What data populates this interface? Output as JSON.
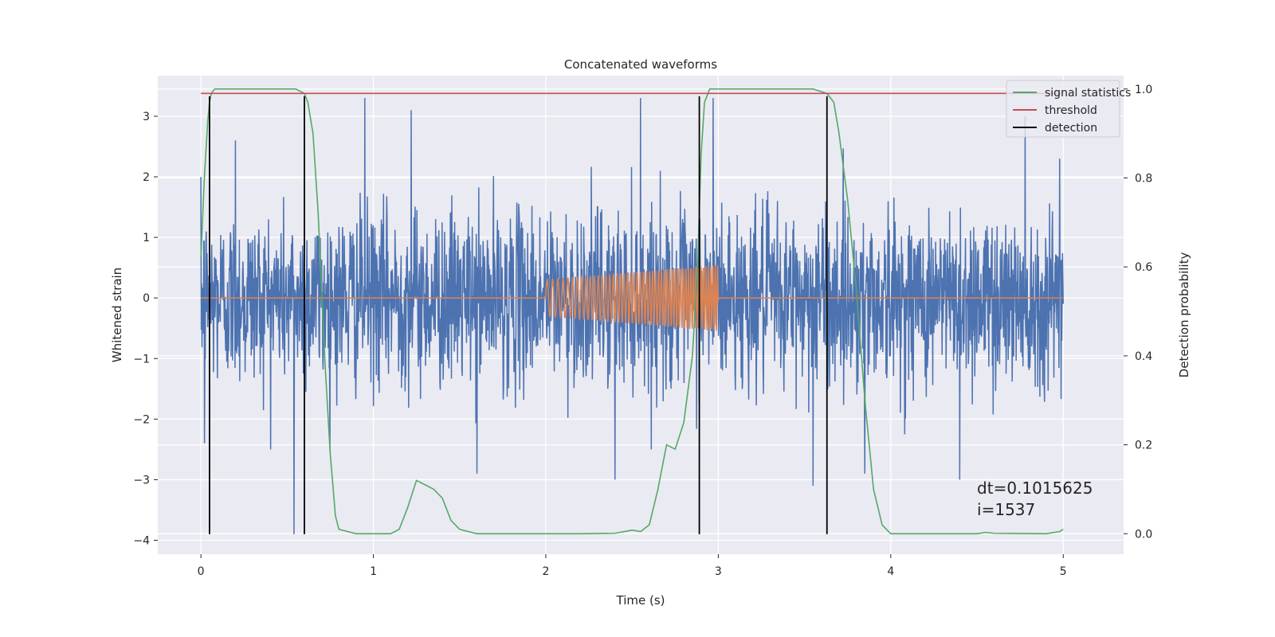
{
  "chart_data": {
    "type": "line",
    "title": "Concatenated waveforms",
    "xlabel": "Time (s)",
    "ylabel_left": "Whitened strain",
    "ylabel_right": "Detection probability",
    "xlim": [
      -0.25,
      5.35
    ],
    "ylim_left": [
      -4.23,
      3.67
    ],
    "ylim_right": [
      -0.046,
      1.03
    ],
    "x_ticks": [
      0,
      1,
      2,
      3,
      4,
      5
    ],
    "y_left_ticks": [
      -4,
      -3,
      -2,
      -1,
      0,
      1,
      2,
      3
    ],
    "y_right_ticks": [
      0.0,
      0.2,
      0.4,
      0.6,
      0.8,
      1.0
    ],
    "x_tick_labels": [
      "0",
      "1",
      "2",
      "3",
      "4",
      "5"
    ],
    "y_left_tick_labels": [
      "−4",
      "−3",
      "−2",
      "−1",
      "0",
      "1",
      "2",
      "3"
    ],
    "y_right_tick_labels": [
      "0.0",
      "0.2",
      "0.4",
      "0.6",
      "0.8",
      "1.0"
    ],
    "grid": true,
    "legend_placement": "top-right",
    "colors": {
      "strain": "#4c72b0",
      "template": "#dd8452",
      "signal_statistics": "#55a868",
      "threshold": "#c44e52",
      "detection": "#000000",
      "background": "#eaeaf2",
      "grid": "#ffffff"
    },
    "series": [
      {
        "name": "",
        "axis": "left",
        "kind": "noise",
        "x_range": [
          0,
          5
        ],
        "typical_abs_max": 2.0,
        "extremes": [
          {
            "x": 0.02,
            "y": -2.4
          },
          {
            "x": 0.2,
            "y": 2.6
          },
          {
            "x": 0.54,
            "y": -3.9
          },
          {
            "x": 0.95,
            "y": 3.3
          },
          {
            "x": 1.22,
            "y": 3.1
          },
          {
            "x": 1.6,
            "y": -2.9
          },
          {
            "x": 2.4,
            "y": -3.0
          },
          {
            "x": 2.55,
            "y": 3.3
          },
          {
            "x": 2.97,
            "y": 3.3
          },
          {
            "x": 3.55,
            "y": -3.1
          },
          {
            "x": 3.85,
            "y": -2.9
          },
          {
            "x": 4.4,
            "y": -3.0
          },
          {
            "x": 4.78,
            "y": -3.6
          },
          {
            "x": 4.78,
            "y": 3.0
          },
          {
            "x": 4.98,
            "y": 2.3
          }
        ]
      },
      {
        "name": "",
        "axis": "left",
        "kind": "chirp",
        "x_range": [
          0,
          5
        ],
        "chirp_start": 2.0,
        "chirp_end": 3.0,
        "amp_start": 0.3,
        "amp_end": 0.55,
        "freq_start": 30,
        "freq_end": 75
      },
      {
        "name": "signal statistics",
        "axis": "right",
        "x": [
          0,
          0.02,
          0.04,
          0.05,
          0.06,
          0.08,
          0.1,
          0.15,
          0.4,
          0.55,
          0.6,
          0.62,
          0.65,
          0.68,
          0.7,
          0.72,
          0.75,
          0.78,
          0.8,
          0.9,
          1.1,
          1.15,
          1.2,
          1.25,
          1.3,
          1.35,
          1.4,
          1.45,
          1.5,
          1.6,
          2.2,
          2.4,
          2.5,
          2.55,
          2.6,
          2.65,
          2.7,
          2.75,
          2.8,
          2.85,
          2.88,
          2.9,
          2.92,
          2.95,
          3.0,
          3.55,
          3.63,
          3.67,
          3.7,
          3.75,
          3.8,
          3.85,
          3.9,
          3.95,
          4.0,
          4.5,
          4.55,
          4.6,
          4.9,
          4.98,
          5.0
        ],
        "values": [
          0.62,
          0.8,
          0.93,
          0.97,
          0.99,
          1.0,
          1.0,
          1.0,
          1.0,
          1.0,
          0.99,
          0.97,
          0.9,
          0.72,
          0.55,
          0.38,
          0.18,
          0.04,
          0.01,
          0.0,
          0.0,
          0.01,
          0.06,
          0.12,
          0.11,
          0.1,
          0.08,
          0.03,
          0.01,
          0.0,
          0.0,
          0.001,
          0.008,
          0.005,
          0.02,
          0.1,
          0.2,
          0.19,
          0.25,
          0.4,
          0.6,
          0.85,
          0.97,
          1.0,
          1.0,
          1.0,
          0.99,
          0.97,
          0.9,
          0.75,
          0.55,
          0.3,
          0.1,
          0.02,
          0.0,
          0.0,
          0.003,
          0.001,
          0.0,
          0.005,
          0.01
        ]
      },
      {
        "name": "threshold",
        "axis": "right",
        "x": [
          0,
          5
        ],
        "values": [
          0.99,
          0.99
        ]
      }
    ],
    "detections": {
      "name": "detection",
      "x": [
        0.05,
        0.6,
        2.89,
        3.63
      ],
      "y_range": [
        -3.9,
        3.33
      ]
    },
    "annotation": {
      "line1": "dt=0.1015625",
      "line2": " i=1537",
      "x": 4.5,
      "y": -3.1
    }
  }
}
